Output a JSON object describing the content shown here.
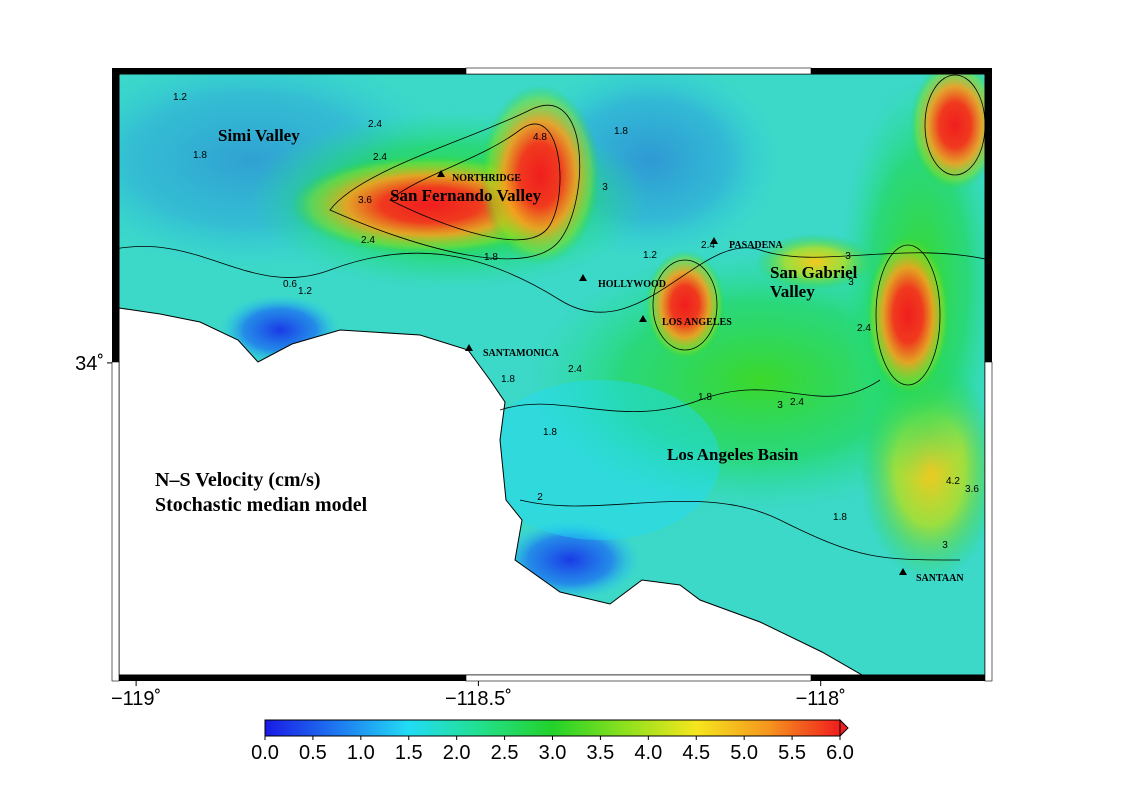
{
  "map": {
    "title_lines": [
      "N–S Velocity (cm/s)",
      "Stochastic median model"
    ],
    "xlim": [
      -119.025,
      -117.76
    ],
    "ylim": [
      33.61,
      34.361
    ],
    "xticks": [
      {
        "value": -119,
        "label": "−119˚"
      },
      {
        "value": -118.5,
        "label": "−118.5˚"
      },
      {
        "value": -118,
        "label": "−118˚"
      }
    ],
    "yticks": [
      {
        "value": 34,
        "label": "34˚"
      }
    ],
    "places": [
      "Simi Valley",
      "San Fernando Valley",
      "NORTHRIDGE",
      "PASADENA",
      "San Gabriel",
      "Valley",
      "HOLLYWOOD",
      "LOS ANGELES",
      "SANTAMONICA",
      "Los Angeles Basin",
      "SANTAAN"
    ],
    "contour_labels": [
      1.2,
      2.4,
      2.4,
      1.8,
      3.6,
      4.8,
      3,
      2.4,
      1.8,
      0.6,
      1.2,
      1.2,
      2.4,
      1.8,
      1.8,
      2,
      1.8,
      3,
      2.4,
      3,
      4.2,
      3.6,
      3,
      1.8,
      1.8,
      2.4,
      3,
      2.4
    ]
  },
  "colorbar": {
    "clim": [
      0,
      6
    ],
    "colors": [
      "#1a1ae6",
      "#1e78f0",
      "#22dcf5",
      "#22e08c",
      "#22d22a",
      "#8ce01e",
      "#f5e61e",
      "#f5961e",
      "#f01e1e"
    ],
    "ticks": [
      {
        "value": 0,
        "label": "0.0"
      },
      {
        "value": 0.5,
        "label": "0.5"
      },
      {
        "value": 1,
        "label": "1.0"
      },
      {
        "value": 1.5,
        "label": "1.5"
      },
      {
        "value": 2,
        "label": "2.0"
      },
      {
        "value": 2.5,
        "label": "2.5"
      },
      {
        "value": 3,
        "label": "3.0"
      },
      {
        "value": 3.5,
        "label": "3.5"
      },
      {
        "value": 4,
        "label": "4.0"
      },
      {
        "value": 4.5,
        "label": "4.5"
      },
      {
        "value": 5,
        "label": "5.0"
      },
      {
        "value": 5.5,
        "label": "5.5"
      },
      {
        "value": 6,
        "label": "6.0"
      }
    ]
  }
}
